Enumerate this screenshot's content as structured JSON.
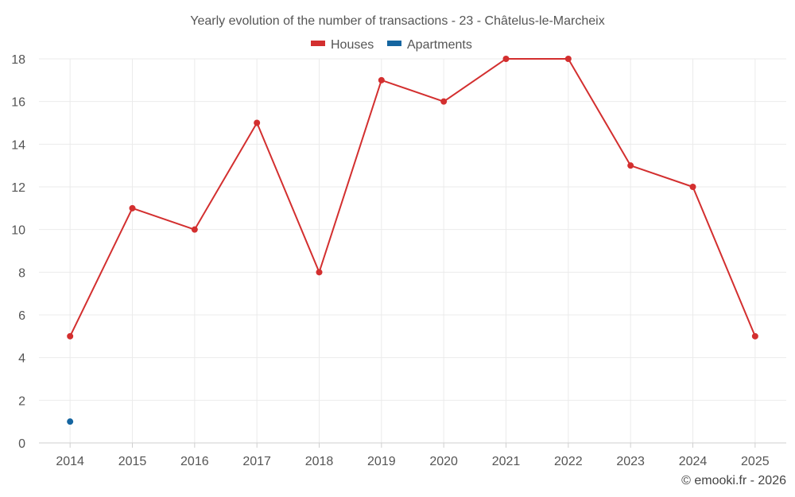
{
  "chart_data": {
    "type": "line",
    "title": "Yearly evolution of the number of transactions - 23 - Châtelus-le-Marcheix",
    "categories": [
      "2014",
      "2015",
      "2016",
      "2017",
      "2018",
      "2019",
      "2020",
      "2021",
      "2022",
      "2023",
      "2024",
      "2025"
    ],
    "series": [
      {
        "name": "Houses",
        "color": "#d32f2f",
        "values": [
          5,
          11,
          10,
          15,
          8,
          17,
          16,
          18,
          18,
          13,
          12,
          5
        ]
      },
      {
        "name": "Apartments",
        "color": "#1565a0",
        "values": [
          1,
          null,
          null,
          null,
          null,
          null,
          null,
          null,
          null,
          null,
          null,
          null
        ]
      }
    ],
    "ylim": [
      0,
      18
    ],
    "yticks": [
      0,
      2,
      4,
      6,
      8,
      10,
      12,
      14,
      16,
      18
    ],
    "xlabel": "",
    "ylabel": "",
    "grid": true,
    "legend_position": "top-center"
  },
  "footer": {
    "credit": "© emooki.fr - 2026"
  }
}
